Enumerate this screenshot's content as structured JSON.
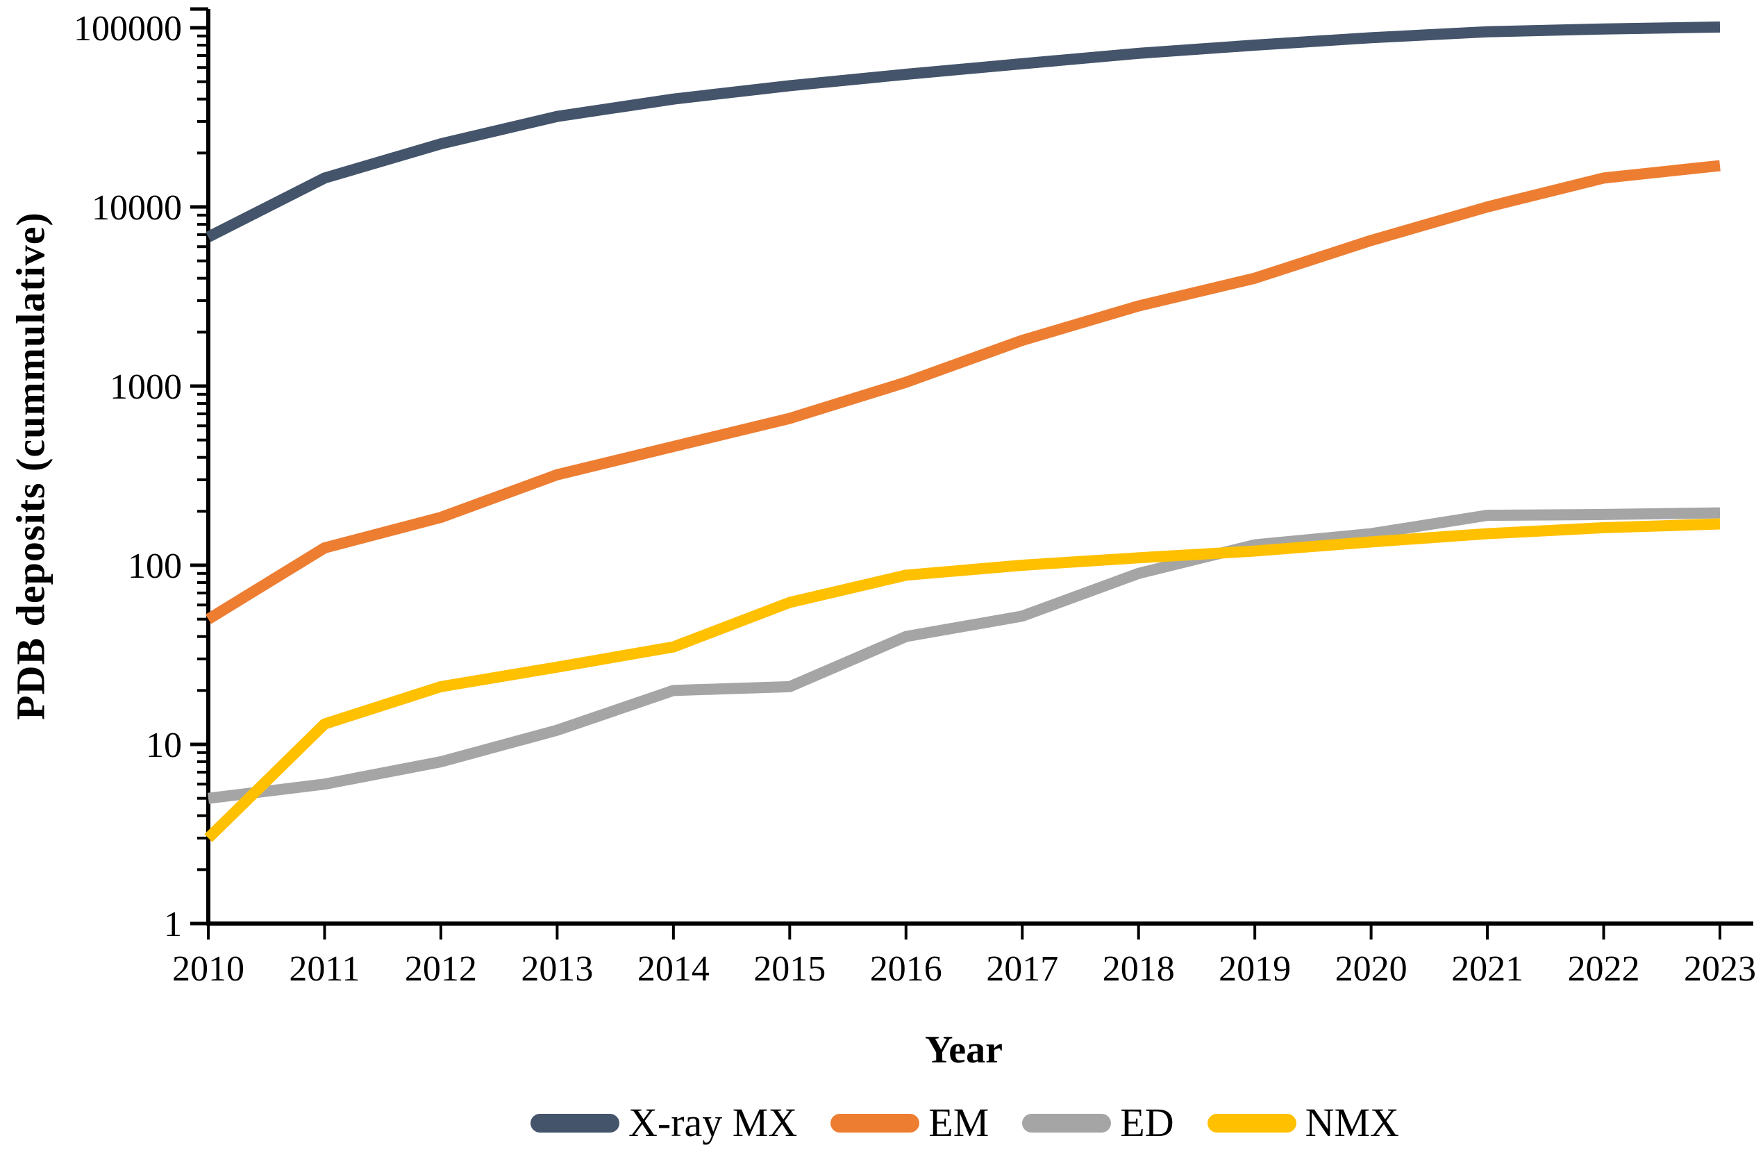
{
  "figure": {
    "background": "#ffffff",
    "axis_color": "#000000"
  },
  "chart_data": {
    "type": "line",
    "xlabel": "Year",
    "ylabel": "PDB deposits (cummulative)",
    "grid": false,
    "x": [
      2010,
      2011,
      2012,
      2013,
      2014,
      2015,
      2016,
      2017,
      2018,
      2019,
      2020,
      2021,
      2022,
      2023
    ],
    "series": [
      {
        "name": "X-ray MX",
        "color": "#44546A",
        "values": [
          6800,
          14500,
          22500,
          32000,
          40000,
          47500,
          55000,
          63000,
          72000,
          80000,
          88000,
          95000,
          98500,
          101000
        ]
      },
      {
        "name": "EM",
        "color": "#ED7D31",
        "values": [
          50,
          125,
          185,
          320,
          460,
          660,
          1050,
          1800,
          2800,
          4000,
          6500,
          10000,
          14500,
          17000
        ]
      },
      {
        "name": "ED",
        "color": "#A5A5A5",
        "values": [
          5,
          6,
          8,
          12,
          20,
          21,
          40,
          52,
          90,
          130,
          150,
          190,
          192,
          196
        ]
      },
      {
        "name": "NMX",
        "color": "#FFC000",
        "values": [
          3,
          13,
          21,
          27,
          35,
          62,
          88,
          100,
          110,
          120,
          135,
          150,
          162,
          170
        ]
      }
    ],
    "y_axis": {
      "scale": "log",
      "min": 1,
      "max": 100000,
      "tick_labels": [
        "1",
        "10",
        "100",
        "1000",
        "10000",
        "100000"
      ]
    },
    "x_axis": {
      "tick_labels": [
        "2010",
        "2011",
        "2012",
        "2013",
        "2014",
        "2015",
        "2016",
        "2017",
        "2018",
        "2019",
        "2020",
        "2021",
        "2022",
        "2023"
      ]
    },
    "legend": {
      "position": "bottom",
      "entries": [
        "X-ray MX",
        "EM",
        "ED",
        "NMX"
      ]
    }
  }
}
